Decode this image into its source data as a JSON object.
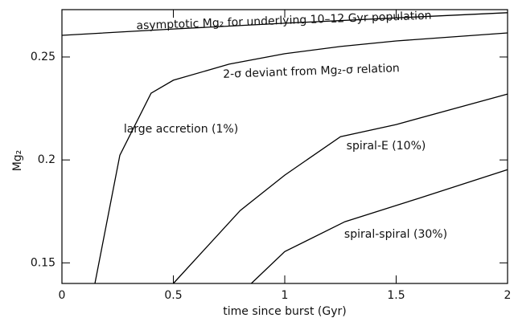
{
  "chart_data": {
    "type": "line",
    "xlabel": "time since burst (Gyr)",
    "ylabel": "Mg₂",
    "xlim": [
      0,
      2
    ],
    "ylim": [
      0.14,
      0.273
    ],
    "xticks": [
      0,
      0.5,
      1,
      1.5,
      2
    ],
    "yticks": [
      0.15,
      0.2,
      0.25
    ],
    "color": "#000000",
    "series": [
      {
        "x": [
          0,
          0.5,
          1,
          1.5,
          2
        ],
        "values": [
          0.2605,
          0.2636,
          0.2664,
          0.269,
          0.2715
        ]
      },
      {
        "x": [
          0.148,
          0.26,
          0.4,
          0.5,
          0.75,
          1,
          1.25,
          1.5,
          2
        ],
        "values": [
          0.14,
          0.2023,
          0.2324,
          0.2387,
          0.2465,
          0.2516,
          0.2551,
          0.2578,
          0.2617
        ]
      },
      {
        "x": [
          0.5,
          0.8,
          1,
          1.25,
          1.5,
          2
        ],
        "values": [
          0.14,
          0.1754,
          0.1926,
          0.2113,
          0.2172,
          0.232
        ]
      },
      {
        "x": [
          0.85,
          1,
          1.27,
          1.6,
          2
        ],
        "values": [
          0.14,
          0.1555,
          0.17,
          0.1813,
          0.1953
        ]
      }
    ],
    "annotations": [
      "asymptotic Mg₂ for underlying 10–12 Gyr population",
      "2-σ deviant from Mg₂-σ relation",
      "large accretion (1%)",
      "spiral-E (10%)",
      "spiral-spiral (30%)"
    ]
  }
}
